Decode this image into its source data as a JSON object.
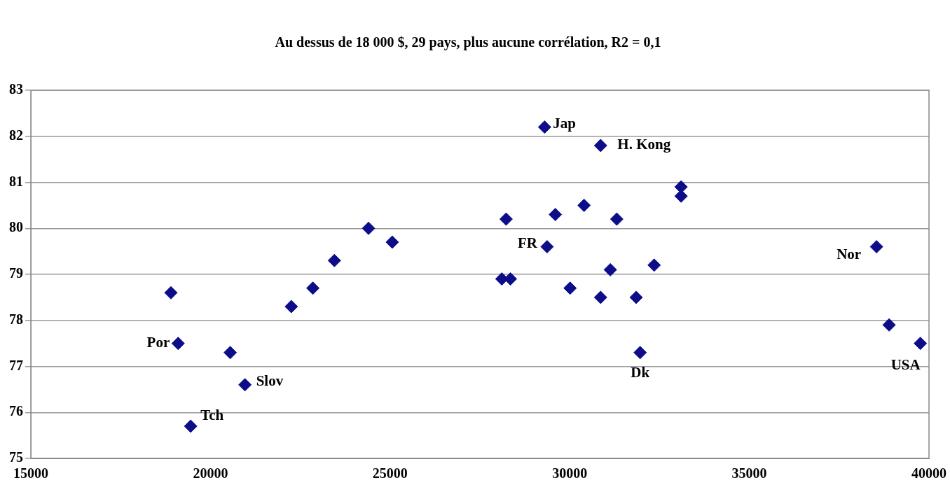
{
  "chart_data": {
    "type": "scatter",
    "title": "Au dessus de 18 000 $, 29 pays, plus aucune corrélation, R2 = 0,1",
    "x": [
      18900,
      19100,
      20550,
      20960,
      19450,
      22250,
      22850,
      23450,
      24400,
      25060,
      28230,
      28110,
      28350,
      29300,
      29370,
      29600,
      30010,
      30400,
      30860,
      30860,
      31130,
      31310,
      31850,
      31960,
      32350,
      33100,
      33100,
      38540,
      38890,
      39760
    ],
    "values": [
      78.6,
      77.5,
      77.3,
      76.6,
      75.7,
      78.3,
      78.7,
      79.3,
      80.0,
      79.7,
      80.2,
      78.9,
      78.9,
      82.2,
      79.6,
      80.3,
      78.7,
      80.5,
      81.8,
      78.5,
      79.1,
      80.2,
      78.5,
      77.3,
      79.2,
      80.9,
      80.7,
      79.6,
      77.9,
      77.5
    ],
    "color": "#0d0d8a",
    "marker": "diamond",
    "xlim": [
      15000,
      40000
    ],
    "xticks": [
      15000,
      20000,
      25000,
      30000,
      35000,
      40000
    ],
    "ylim": [
      75,
      83
    ],
    "yticks": [
      75,
      76,
      77,
      78,
      79,
      80,
      81,
      82,
      83
    ],
    "grid": "y",
    "legend": false,
    "annotations": [
      {
        "text": "Jap",
        "x": 29300,
        "y": 82.2
      },
      {
        "text": "H. Kong",
        "x": 30860,
        "y": 81.8
      },
      {
        "text": "FR",
        "x": 29370,
        "y": 79.6
      },
      {
        "text": "Nor",
        "x": 38540,
        "y": 79.6
      },
      {
        "text": "Por",
        "x": 19100,
        "y": 77.5
      },
      {
        "text": "Slov",
        "x": 20960,
        "y": 76.6
      },
      {
        "text": "Tch",
        "x": 19450,
        "y": 75.7
      },
      {
        "text": "Dk",
        "x": 31960,
        "y": 77.3
      },
      {
        "text": "USA",
        "x": 39760,
        "y": 77.5
      }
    ]
  }
}
